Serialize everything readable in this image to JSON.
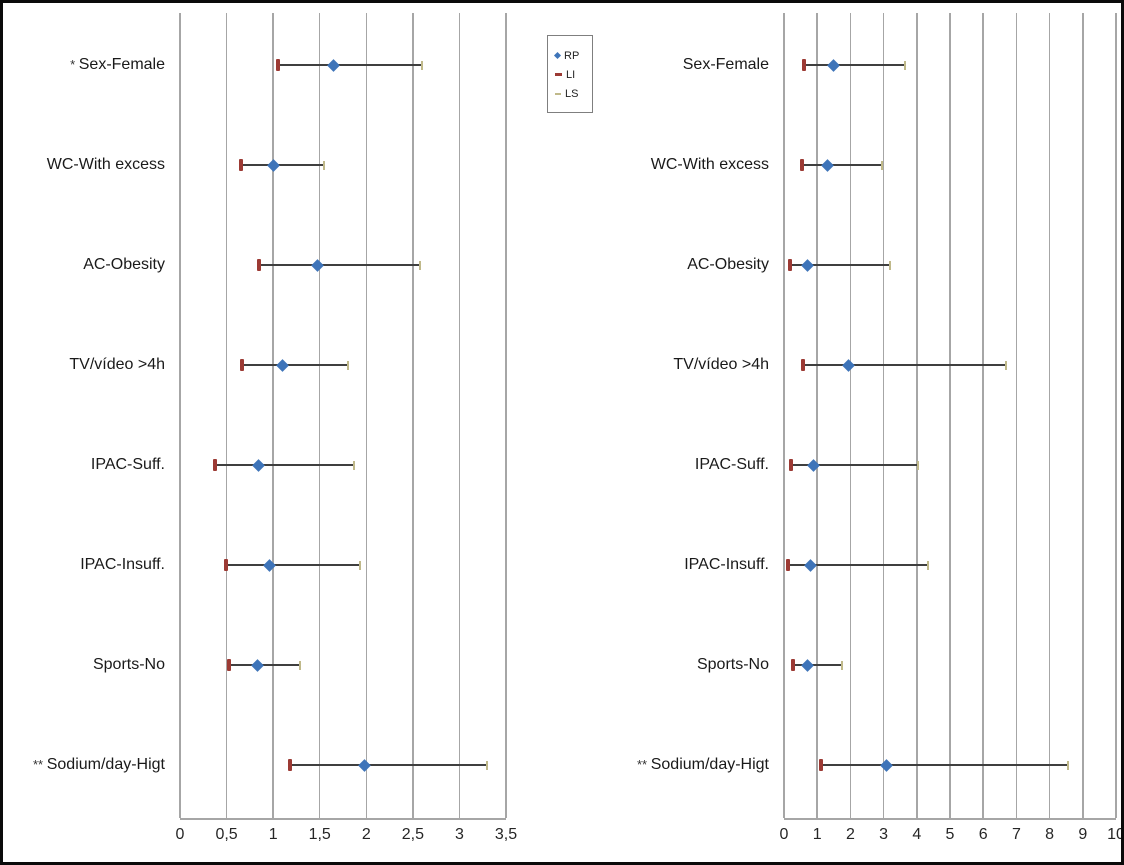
{
  "colors": {
    "rp": "#3e74b9",
    "li": "#9c3a34",
    "ls": "#c0b98a",
    "bar_line": "#3f3f3f",
    "gridline": "#a6a6a6"
  },
  "legend": {
    "items": [
      {
        "label": "RP",
        "marker": "diamond-icon"
      },
      {
        "label": "LI",
        "marker": "dash-icon"
      },
      {
        "label": "LS",
        "marker": "dash-icon"
      }
    ]
  },
  "chart_data": [
    {
      "type": "scatter",
      "title": "",
      "xlabel": "",
      "ylabel": "",
      "grid": true,
      "legend_position": "top-right-outside",
      "xlim": [
        0,
        3.5
      ],
      "x_ticks": [
        {
          "value": 0,
          "label": "0"
        },
        {
          "value": 0.5,
          "label": "0,5"
        },
        {
          "value": 1,
          "label": "1"
        },
        {
          "value": 1.5,
          "label": "1,5"
        },
        {
          "value": 2,
          "label": "2"
        },
        {
          "value": 2.5,
          "label": "2,5"
        },
        {
          "value": 3,
          "label": "3"
        },
        {
          "value": 3.5,
          "label": "3,5"
        }
      ],
      "categories": [
        {
          "prefix": "*",
          "label": "Sex-Female"
        },
        {
          "prefix": "",
          "label": "WC-With excess"
        },
        {
          "prefix": "",
          "label": "AC-Obesity"
        },
        {
          "prefix": "",
          "label": "TV/vídeo >4h"
        },
        {
          "prefix": "",
          "label": "IPAC-Suff."
        },
        {
          "prefix": "",
          "label": "IPAC-Insuff."
        },
        {
          "prefix": "",
          "label": "Sports-No"
        },
        {
          "prefix": "**",
          "label": "Sodium/day-Higt"
        }
      ],
      "series": [
        {
          "name": "RP",
          "values": [
            1.65,
            1.0,
            1.48,
            1.1,
            0.84,
            0.96,
            0.83,
            1.98
          ]
        },
        {
          "name": "LI",
          "values": [
            1.05,
            0.65,
            0.85,
            0.67,
            0.38,
            0.49,
            0.53,
            1.18
          ]
        },
        {
          "name": "LS",
          "values": [
            2.6,
            1.55,
            2.58,
            1.8,
            1.87,
            1.93,
            1.29,
            3.3
          ]
        }
      ]
    },
    {
      "type": "scatter",
      "title": "",
      "xlabel": "",
      "ylabel": "",
      "grid": true,
      "legend_position": "none",
      "xlim": [
        0,
        10
      ],
      "x_ticks": [
        {
          "value": 0,
          "label": "0"
        },
        {
          "value": 1,
          "label": "1"
        },
        {
          "value": 2,
          "label": "2"
        },
        {
          "value": 3,
          "label": "3"
        },
        {
          "value": 4,
          "label": "4"
        },
        {
          "value": 5,
          "label": "5"
        },
        {
          "value": 6,
          "label": "6"
        },
        {
          "value": 7,
          "label": "7"
        },
        {
          "value": 8,
          "label": "8"
        },
        {
          "value": 9,
          "label": "9"
        },
        {
          "value": 10,
          "label": "10"
        }
      ],
      "categories": [
        {
          "prefix": "",
          "label": "Sex-Female"
        },
        {
          "prefix": "",
          "label": "WC-With excess"
        },
        {
          "prefix": "",
          "label": "AC-Obesity"
        },
        {
          "prefix": "",
          "label": "TV/vídeo >4h"
        },
        {
          "prefix": "",
          "label": "IPAC-Suff."
        },
        {
          "prefix": "",
          "label": "IPAC-Insuff."
        },
        {
          "prefix": "",
          "label": "Sports-No"
        },
        {
          "prefix": "**",
          "label": "Sodium/day-Higt"
        }
      ],
      "series": [
        {
          "name": "RP",
          "values": [
            1.5,
            1.3,
            0.7,
            1.95,
            0.9,
            0.8,
            0.7,
            3.1
          ]
        },
        {
          "name": "LI",
          "values": [
            0.6,
            0.55,
            0.18,
            0.57,
            0.22,
            0.12,
            0.28,
            1.1
          ]
        },
        {
          "name": "LS",
          "values": [
            3.65,
            2.95,
            3.2,
            6.7,
            4.05,
            4.35,
            1.75,
            8.55
          ]
        }
      ]
    }
  ]
}
